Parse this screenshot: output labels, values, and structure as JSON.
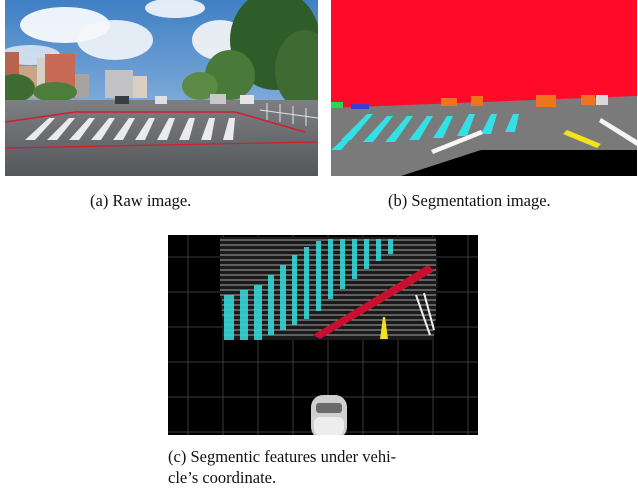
{
  "figure": {
    "panels": [
      {
        "id": "a",
        "label": "(a)",
        "caption": "Raw image.",
        "content": "street-photo"
      },
      {
        "id": "b",
        "label": "(b)",
        "caption": "Segmentation image.",
        "content": "semantic-segmentation-map"
      },
      {
        "id": "c",
        "label": "(c)",
        "caption": "Segmentic features under vehi-",
        "caption_line2": "cle’s coordinate.",
        "content": "birds-eye-view-grid"
      }
    ],
    "segmentation_colors": {
      "sky_buildings": "#ff0a28",
      "road": "#7a7a7a",
      "crosswalk": "#33e0e6",
      "lane_marking_red": "#c8102e",
      "lane_marking_yellow": "#f1e21c",
      "lane_marking_white": "#f5f5f5",
      "vegetation": "#27d651",
      "vehicles": "#f0731f",
      "background": "#000000"
    }
  }
}
